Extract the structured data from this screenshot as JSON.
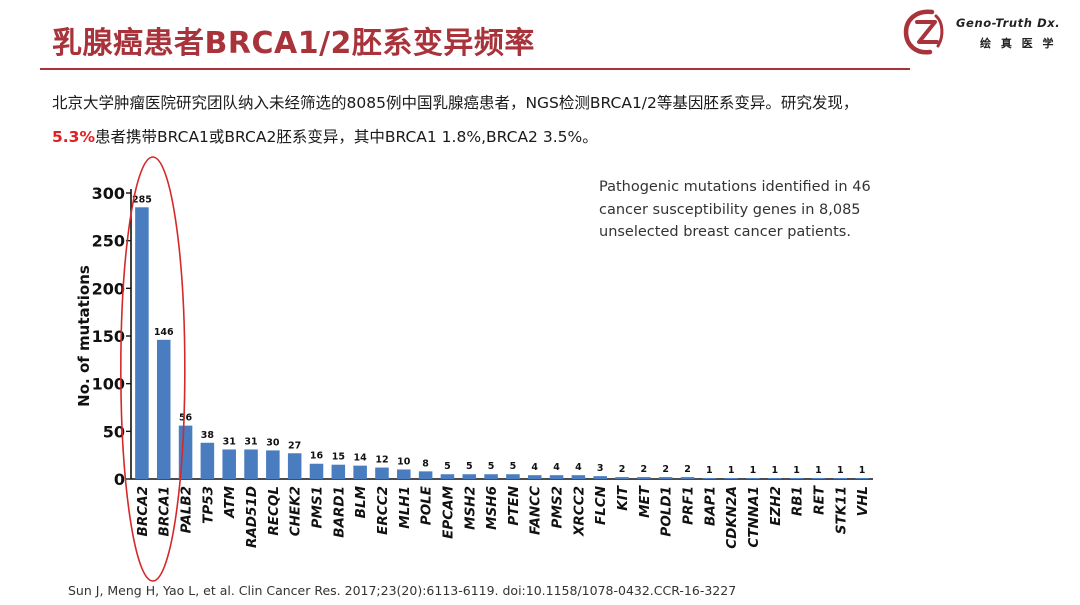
{
  "header": {
    "title": "乳腺癌患者BRCA1/2胚系变异频率",
    "logo_text_en": "Geno-Truth Dx.",
    "logo_text_cn": "绘 真 医 学",
    "brand_color": "#a9333a"
  },
  "intro": {
    "line1": "北京大学肿瘤医院研究团队纳入未经筛选的8085例中国乳腺癌患者，NGS检测BRCA1/2等基因胚系变异。研究发现，",
    "highlight": "5.3%",
    "line2": "患者携带BRCA1或BRCA2胚系变异，其中BRCA1 1.8%,BRCA2 3.5%。",
    "highlight_color": "#e02020"
  },
  "chart_data": {
    "type": "bar",
    "title": "",
    "annotation": "Pathogenic mutations identified in 46 cancer susceptibility genes in 8,085 unselected breast cancer patients.",
    "xlabel": "",
    "ylabel": "No. of mutations",
    "ylim": [
      0,
      300
    ],
    "yticks": [
      0,
      50,
      100,
      150,
      200,
      250,
      300
    ],
    "grid": false,
    "bar_color": "#4a7cc0",
    "categories": [
      "BRCA2",
      "BRCA1",
      "PALB2",
      "TP53",
      "ATM",
      "RAD51D",
      "RECQL",
      "CHEK2",
      "PMS1",
      "BARD1",
      "BLM",
      "ERCC2",
      "MLH1",
      "POLE",
      "EPCAM",
      "MSH2",
      "MSH6",
      "PTEN",
      "FANCC",
      "PMS2",
      "XRCC2",
      "FLCN",
      "KIT",
      "MET",
      "POLD1",
      "PRF1",
      "BAP1",
      "CDKN2A",
      "CTNNA1",
      "EZH2",
      "RB1",
      "RET",
      "STK11",
      "VHL"
    ],
    "values": [
      285,
      146,
      56,
      38,
      31,
      31,
      30,
      27,
      16,
      15,
      14,
      12,
      10,
      8,
      5,
      5,
      5,
      5,
      4,
      4,
      4,
      3,
      2,
      2,
      2,
      2,
      1,
      1,
      1,
      1,
      1,
      1,
      1,
      1
    ],
    "highlighted_categories": [
      "BRCA2",
      "BRCA1"
    ],
    "highlight_color": "#d62828"
  },
  "citation": "Sun J, Meng H, Yao L, et al. Clin Cancer Res. 2017;23(20):6113-6119. doi:10.1158/1078-0432.CCR-16-3227"
}
